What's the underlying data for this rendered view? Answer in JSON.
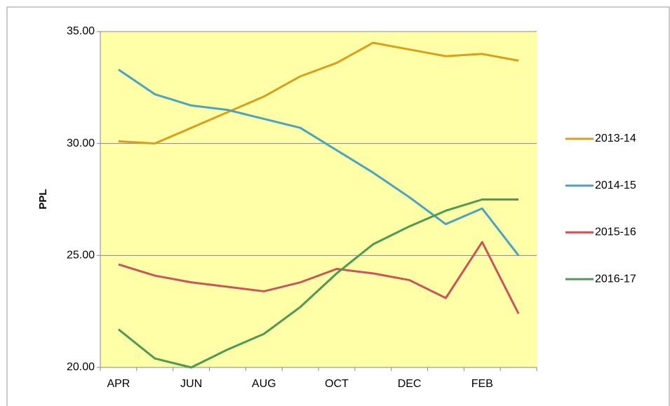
{
  "chart_data": {
    "type": "line",
    "y_label": "PPL",
    "categories": [
      "APR",
      null,
      "JUN",
      null,
      "AUG",
      null,
      "OCT",
      null,
      "DEC",
      null,
      "FEB",
      null
    ],
    "series": [
      {
        "name": "2013-14",
        "color": "#d8a01c",
        "values": [
          30.1,
          30.0,
          30.7,
          31.4,
          32.1,
          33.0,
          33.6,
          34.5,
          34.2,
          33.9,
          34.0,
          33.7
        ]
      },
      {
        "name": "2014-15",
        "color": "#4ba3c3",
        "values": [
          33.3,
          32.2,
          31.7,
          31.5,
          31.1,
          30.7,
          29.7,
          28.7,
          27.6,
          26.4,
          27.1,
          25.0
        ]
      },
      {
        "name": "2015-16",
        "color": "#c9545a",
        "values": [
          24.6,
          24.1,
          23.8,
          23.6,
          23.4,
          23.8,
          24.4,
          24.2,
          23.9,
          23.1,
          25.6,
          22.4
        ]
      },
      {
        "name": "2016-17",
        "color": "#4e9a52",
        "values": [
          21.7,
          20.4,
          20.0,
          20.8,
          21.5,
          22.7,
          24.2,
          25.5,
          26.3,
          27.0,
          27.5,
          27.5
        ]
      }
    ],
    "ylim": [
      20,
      35
    ],
    "yticks": [
      {
        "value": 20,
        "label": "20.00"
      },
      {
        "value": 25,
        "label": "25.00"
      },
      {
        "value": 30,
        "label": "30.00"
      },
      {
        "value": 35,
        "label": "35.00"
      }
    ],
    "grid": true,
    "plot_background": "#ffffa8",
    "legend": "right"
  }
}
